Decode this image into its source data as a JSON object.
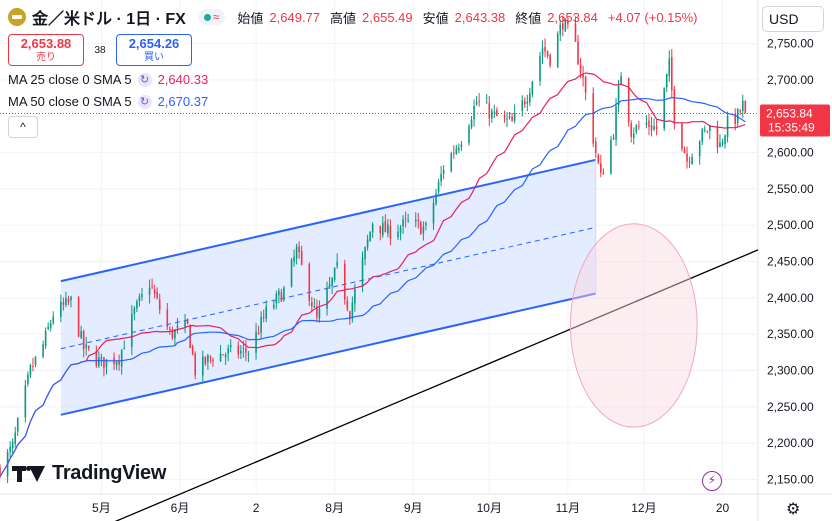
{
  "header": {
    "symbol": "金／米ドル · 1日 · FX",
    "ohlc": [
      {
        "label": "始値",
        "value": "2,649.77"
      },
      {
        "label": "高値",
        "value": "2,655.49"
      },
      {
        "label": "安値",
        "value": "2,643.38"
      },
      {
        "label": "終値",
        "value": "2,653.84"
      }
    ],
    "change": "+4.07 (+0.15%)",
    "sell": {
      "price": "2,653.88",
      "label": "売り"
    },
    "buy": {
      "price": "2,654.26",
      "label": "買い"
    },
    "spread": "38",
    "indicators": [
      {
        "settings": "MA 25 close 0 SMA 5",
        "value": "2,640.33",
        "color": "#e91e63"
      },
      {
        "settings": "MA 50 close 0 SMA 5",
        "value": "2,670.37",
        "color": "#2962ff"
      }
    ],
    "collapse_icon": "chevron-up-icon"
  },
  "currency": "USD",
  "brand": "TradingView",
  "colors": {
    "up": "#089981",
    "down": "#f23645",
    "channel": "#2962ff",
    "channel_fill": "#dbe5ff",
    "circle": "#f8d7e1",
    "trend": "#000000"
  },
  "chart_data": {
    "type": "candlestick",
    "y_axis": {
      "ticks": [
        2150,
        2200,
        2250,
        2300,
        2350,
        2400,
        2450,
        2500,
        2550,
        2600,
        2650,
        2700,
        2750
      ],
      "tick_labels": [
        "2,150.00",
        "2,200.00",
        "2,250.00",
        "2,300.00",
        "2,350.00",
        "2,400.00",
        "2,450.00",
        "2,500.00",
        "2,550.00",
        "2,600.00",
        "2,650.00",
        "2,700.00",
        "2,750.00"
      ],
      "ylim": [
        2130,
        2810
      ]
    },
    "x_axis": {
      "labels": [
        "5月",
        "6月",
        "2",
        "8月",
        "9月",
        "10月",
        "11月",
        "12月",
        "20"
      ],
      "dates": [
        "2024-05-01",
        "2024-06-01",
        "2024-07-01",
        "2024-08-01",
        "2024-09-01",
        "2024-10-01",
        "2024-11-01",
        "2024-12-01",
        "2025-01-01"
      ],
      "xlim": [
        "2024-03-22",
        "2025-01-15"
      ]
    },
    "last_price": {
      "value": 2653.84,
      "label": "2,653.84",
      "countdown": "15:35:49"
    },
    "close_path": [
      {
        "date": "2024-03-22",
        "close": 2165
      },
      {
        "date": "2024-03-27",
        "close": 2195
      },
      {
        "date": "2024-04-03",
        "close": 2300
      },
      {
        "date": "2024-04-08",
        "close": 2335
      },
      {
        "date": "2024-04-12",
        "close": 2378
      },
      {
        "date": "2024-04-19",
        "close": 2395
      },
      {
        "date": "2024-04-24",
        "close": 2330
      },
      {
        "date": "2024-05-01",
        "close": 2310
      },
      {
        "date": "2024-05-08",
        "close": 2318
      },
      {
        "date": "2024-05-14",
        "close": 2380
      },
      {
        "date": "2024-05-20",
        "close": 2420
      },
      {
        "date": "2024-05-28",
        "close": 2350
      },
      {
        "date": "2024-06-04",
        "close": 2360
      },
      {
        "date": "2024-06-07",
        "close": 2300
      },
      {
        "date": "2024-06-14",
        "close": 2320
      },
      {
        "date": "2024-06-21",
        "close": 2325
      },
      {
        "date": "2024-06-28",
        "close": 2326
      },
      {
        "date": "2024-07-05",
        "close": 2380
      },
      {
        "date": "2024-07-12",
        "close": 2410
      },
      {
        "date": "2024-07-17",
        "close": 2465
      },
      {
        "date": "2024-07-25",
        "close": 2370
      },
      {
        "date": "2024-08-02",
        "close": 2440
      },
      {
        "date": "2024-08-07",
        "close": 2380
      },
      {
        "date": "2024-08-16",
        "close": 2505
      },
      {
        "date": "2024-08-22",
        "close": 2490
      },
      {
        "date": "2024-08-30",
        "close": 2503
      },
      {
        "date": "2024-09-06",
        "close": 2495
      },
      {
        "date": "2024-09-13",
        "close": 2580
      },
      {
        "date": "2024-09-20",
        "close": 2620
      },
      {
        "date": "2024-09-26",
        "close": 2670
      },
      {
        "date": "2024-10-03",
        "close": 2650
      },
      {
        "date": "2024-10-10",
        "close": 2640
      },
      {
        "date": "2024-10-16",
        "close": 2680
      },
      {
        "date": "2024-10-22",
        "close": 2745
      },
      {
        "date": "2024-10-25",
        "close": 2730
      },
      {
        "date": "2024-10-30",
        "close": 2780
      },
      {
        "date": "2024-11-04",
        "close": 2745
      },
      {
        "date": "2024-11-07",
        "close": 2700
      },
      {
        "date": "2024-11-12",
        "close": 2600
      },
      {
        "date": "2024-11-14",
        "close": 2565
      },
      {
        "date": "2024-11-19",
        "close": 2630
      },
      {
        "date": "2024-11-22",
        "close": 2710
      },
      {
        "date": "2024-11-26",
        "close": 2630
      },
      {
        "date": "2024-12-02",
        "close": 2640
      },
      {
        "date": "2024-12-06",
        "close": 2633
      },
      {
        "date": "2024-12-11",
        "close": 2720
      },
      {
        "date": "2024-12-13",
        "close": 2650
      },
      {
        "date": "2024-12-18",
        "close": 2590
      },
      {
        "date": "2024-12-23",
        "close": 2620
      },
      {
        "date": "2024-12-27",
        "close": 2635
      },
      {
        "date": "2024-12-31",
        "close": 2610
      },
      {
        "date": "2025-01-03",
        "close": 2640
      },
      {
        "date": "2025-01-07",
        "close": 2650
      },
      {
        "date": "2025-01-09",
        "close": 2665
      },
      {
        "date": "2025-01-10",
        "close": 2653.84
      }
    ],
    "channel": {
      "start_date": "2024-04-15",
      "end_date": "2024-11-12",
      "upper": [
        2423,
        2590
      ],
      "mid": [
        2330,
        2497
      ],
      "lower": [
        2239,
        2406
      ]
    },
    "trend_line": {
      "points": [
        {
          "date": "2024-05-05",
          "value": 2090
        },
        {
          "date": "2025-01-15",
          "value": 2466
        }
      ]
    },
    "circle": {
      "center_date": "2024-11-27",
      "center_value": 2362,
      "radius_days": 25,
      "radius_value": 140
    }
  }
}
